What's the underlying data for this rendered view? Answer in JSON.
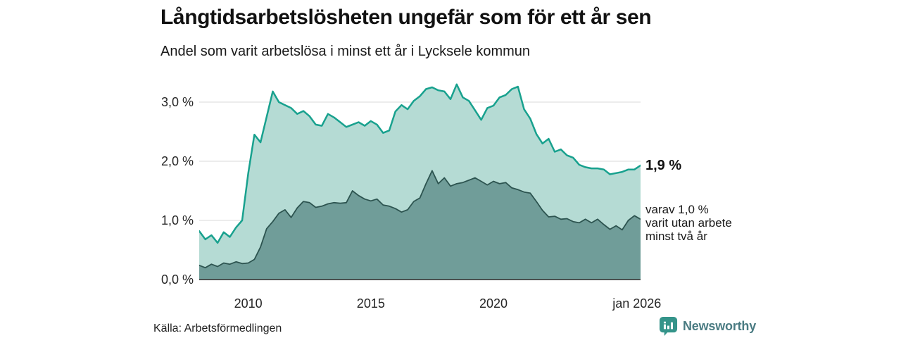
{
  "header": {
    "title": "Långtidsarbetslösheten ungefär som för ett år sen",
    "subtitle": "Andel som varit arbetslösa i minst ett år i Lycksele kommun"
  },
  "chart_data": {
    "type": "area",
    "title": "Långtidsarbetslösheten ungefär som för ett år sen",
    "subtitle": "Andel som varit arbetslösa i minst ett år i Lycksele kommun",
    "x_range": [
      2008,
      2026
    ],
    "y_range": [
      0,
      3.452
    ],
    "grid": true,
    "x_start": 2008,
    "x_step": 0.25,
    "y_ticks": [
      {
        "value": 0,
        "label": "0,0 %"
      },
      {
        "value": 1,
        "label": "1,0 %"
      },
      {
        "value": 2,
        "label": "2,0 %"
      },
      {
        "value": 3,
        "label": "3,0 %"
      }
    ],
    "x_ticks": [
      {
        "x": 2010,
        "label": "2010"
      },
      {
        "x": 2015,
        "label": "2015"
      },
      {
        "x": 2020,
        "label": "2020"
      },
      {
        "x": 2025.85,
        "label": "jan 2026"
      }
    ],
    "series": [
      {
        "name": "Andel som varit arbetslösa i minst ett år",
        "line_color": "#18a18e",
        "fill_color": "#b5dbd4",
        "line_width": 2.5,
        "end_value_label": "1,9 %",
        "values": [
          0.82,
          0.68,
          0.75,
          0.62,
          0.8,
          0.72,
          0.88,
          1.0,
          1.8,
          2.45,
          2.32,
          2.75,
          3.18,
          3.0,
          2.95,
          2.9,
          2.8,
          2.85,
          2.76,
          2.62,
          2.6,
          2.8,
          2.74,
          2.66,
          2.58,
          2.62,
          2.66,
          2.6,
          2.68,
          2.62,
          2.48,
          2.52,
          2.84,
          2.95,
          2.88,
          3.02,
          3.1,
          3.22,
          3.25,
          3.2,
          3.18,
          3.05,
          3.3,
          3.08,
          3.02,
          2.86,
          2.7,
          2.9,
          2.94,
          3.08,
          3.12,
          3.22,
          3.26,
          2.88,
          2.72,
          2.46,
          2.3,
          2.38,
          2.16,
          2.2,
          2.1,
          2.06,
          1.94,
          1.9,
          1.88,
          1.88,
          1.86,
          1.78,
          1.8,
          1.82,
          1.86,
          1.86,
          1.93
        ]
      },
      {
        "name": "varav varit utan arbete minst två år",
        "line_color": "#2d5450",
        "fill_color": "#709d99",
        "line_width": 1.8,
        "end_value_label": "varav 1,0 % varit utan arbete minst två år",
        "values": [
          0.24,
          0.2,
          0.26,
          0.22,
          0.28,
          0.26,
          0.3,
          0.27,
          0.28,
          0.34,
          0.55,
          0.86,
          0.98,
          1.12,
          1.18,
          1.05,
          1.21,
          1.32,
          1.3,
          1.22,
          1.24,
          1.28,
          1.3,
          1.29,
          1.3,
          1.5,
          1.42,
          1.36,
          1.33,
          1.36,
          1.26,
          1.24,
          1.2,
          1.14,
          1.18,
          1.32,
          1.38,
          1.62,
          1.84,
          1.62,
          1.72,
          1.58,
          1.62,
          1.64,
          1.68,
          1.72,
          1.66,
          1.6,
          1.66,
          1.62,
          1.64,
          1.55,
          1.52,
          1.48,
          1.46,
          1.32,
          1.17,
          1.06,
          1.07,
          1.02,
          1.03,
          0.98,
          0.96,
          1.02,
          0.96,
          1.02,
          0.93,
          0.85,
          0.91,
          0.84,
          1.0,
          1.08,
          1.02
        ]
      }
    ]
  },
  "annotations": {
    "series1_end": "1,9 %",
    "series2_end_lines": [
      "varav 1,0 %",
      "varit utan arbete",
      "minst två år"
    ]
  },
  "footer": {
    "source": "Källa: Arbetsförmedlingen",
    "logo_text": "Newsworthy"
  },
  "colors": {
    "grid": "#d9d9d9",
    "baseline": "#2b2b2b",
    "logo_icon": "#35948a",
    "logo_text": "#4a7b82"
  }
}
